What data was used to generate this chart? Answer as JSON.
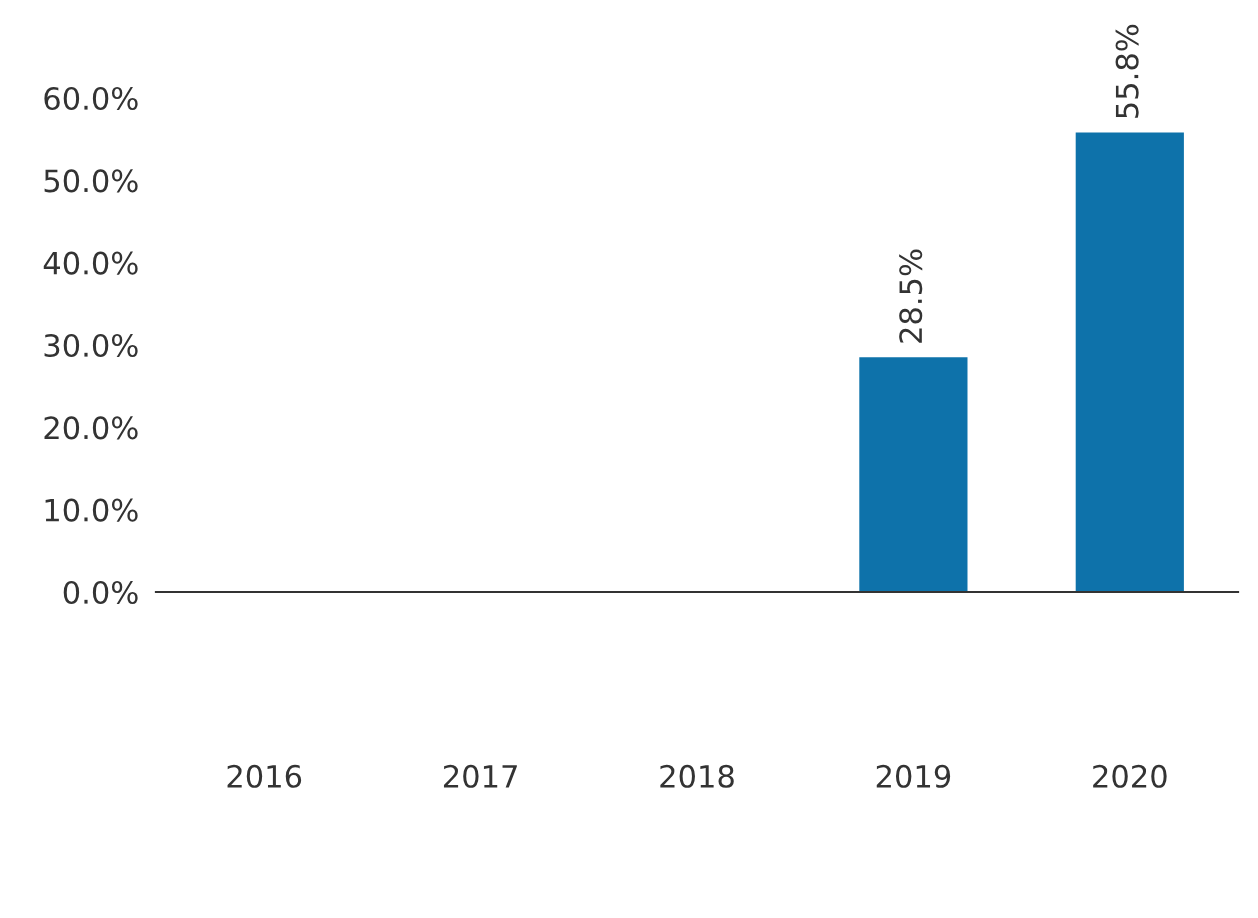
{
  "chart_data": {
    "type": "bar",
    "categories": [
      "2016",
      "2017",
      "2018",
      "2019",
      "2020"
    ],
    "values": [
      null,
      null,
      null,
      28.5,
      55.8
    ],
    "color": "#0e72aa",
    "value_labels": [
      null,
      null,
      null,
      "28.5%",
      "55.8%"
    ],
    "ylim": [
      0,
      60
    ],
    "yticks": [
      {
        "value": 0,
        "label": "0.0%"
      },
      {
        "value": 10,
        "label": "10.0%"
      },
      {
        "value": 20,
        "label": "20.0%"
      },
      {
        "value": 30,
        "label": "30.0%"
      },
      {
        "value": 40,
        "label": "40.0%"
      },
      {
        "value": 50,
        "label": "50.0%"
      },
      {
        "value": 60,
        "label": "60.0%"
      }
    ],
    "grid": false,
    "legend": false
  }
}
